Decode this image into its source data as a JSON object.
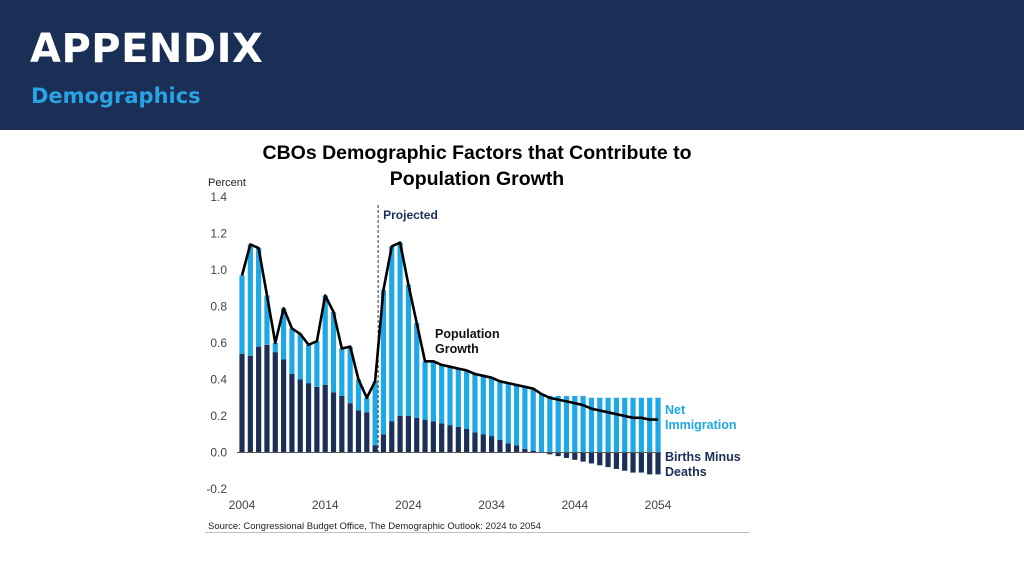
{
  "header": {
    "title": "APPENDIX",
    "subtitle": "Demographics"
  },
  "colors": {
    "header_bg": "#1a2f55",
    "subtitle": "#2aa3e6",
    "net_immigration": "#1fa8e6",
    "births_minus_deaths": "#1b2f57",
    "population_growth": "#000000",
    "projected_label": "#1b2f57"
  },
  "chart_data": {
    "type": "bar",
    "title": "CBOs Demographic Factors that Contribute to Population Growth",
    "title_lines": [
      "CBOs Demographic Factors that Contribute to",
      "Population Growth"
    ],
    "ylabel": "Percent",
    "xlabel": "",
    "ylim": [
      -0.2,
      1.4
    ],
    "yticks": [
      "1.4",
      "1.2",
      "1.0",
      "0.8",
      "0.6",
      "0.4",
      "0.2",
      "0.0",
      "-0.2"
    ],
    "ytick_values": [
      1.4,
      1.2,
      1.0,
      0.8,
      0.6,
      0.4,
      0.2,
      0.0,
      -0.2
    ],
    "xticks": [
      "2004",
      "2014",
      "2024",
      "2034",
      "2044",
      "2054"
    ],
    "xtick_values": [
      2004,
      2014,
      2024,
      2034,
      2044,
      2054
    ],
    "projected_line_x": 2020,
    "annotations": {
      "projected": "Projected",
      "population_growth": [
        "Population",
        "Growth"
      ],
      "net_immigration": [
        "Net",
        "Immigration"
      ],
      "births_minus_deaths": [
        "Births Minus",
        "Deaths"
      ]
    },
    "source": "Source: Congressional Budget Office, The Demographic Outlook: 2024 to 2054",
    "years": [
      2004,
      2005,
      2006,
      2007,
      2008,
      2009,
      2010,
      2011,
      2012,
      2013,
      2014,
      2015,
      2016,
      2017,
      2018,
      2019,
      2020,
      2021,
      2022,
      2023,
      2024,
      2025,
      2026,
      2027,
      2028,
      2029,
      2030,
      2031,
      2032,
      2033,
      2034,
      2035,
      2036,
      2037,
      2038,
      2039,
      2040,
      2041,
      2042,
      2043,
      2044,
      2045,
      2046,
      2047,
      2048,
      2049,
      2050,
      2051,
      2052,
      2053,
      2054
    ],
    "series": [
      {
        "name": "Births Minus Deaths",
        "values": [
          0.54,
          0.53,
          0.58,
          0.59,
          0.55,
          0.51,
          0.43,
          0.4,
          0.38,
          0.36,
          0.37,
          0.33,
          0.31,
          0.27,
          0.23,
          0.22,
          0.04,
          0.1,
          0.17,
          0.2,
          0.2,
          0.19,
          0.18,
          0.17,
          0.16,
          0.15,
          0.14,
          0.13,
          0.11,
          0.1,
          0.09,
          0.07,
          0.05,
          0.04,
          0.02,
          0.01,
          0.0,
          -0.01,
          -0.02,
          -0.03,
          -0.04,
          -0.05,
          -0.06,
          -0.07,
          -0.08,
          -0.09,
          -0.1,
          -0.11,
          -0.11,
          -0.12,
          -0.12
        ]
      },
      {
        "name": "Net Immigration",
        "values": [
          0.43,
          0.61,
          0.54,
          0.27,
          0.05,
          0.28,
          0.25,
          0.25,
          0.21,
          0.25,
          0.49,
          0.44,
          0.26,
          0.31,
          0.17,
          0.08,
          0.35,
          0.79,
          0.96,
          0.95,
          0.72,
          0.52,
          0.32,
          0.33,
          0.32,
          0.32,
          0.32,
          0.32,
          0.32,
          0.32,
          0.32,
          0.32,
          0.33,
          0.33,
          0.34,
          0.34,
          0.32,
          0.31,
          0.31,
          0.31,
          0.31,
          0.31,
          0.3,
          0.3,
          0.3,
          0.3,
          0.3,
          0.3,
          0.3,
          0.3,
          0.3
        ]
      },
      {
        "name": "Population Growth",
        "values": [
          0.97,
          1.14,
          1.12,
          0.86,
          0.6,
          0.79,
          0.68,
          0.65,
          0.59,
          0.61,
          0.86,
          0.77,
          0.57,
          0.58,
          0.4,
          0.3,
          0.39,
          0.89,
          1.13,
          1.15,
          0.92,
          0.71,
          0.5,
          0.5,
          0.48,
          0.47,
          0.46,
          0.45,
          0.43,
          0.42,
          0.41,
          0.39,
          0.38,
          0.37,
          0.36,
          0.35,
          0.32,
          0.3,
          0.29,
          0.28,
          0.27,
          0.26,
          0.24,
          0.23,
          0.22,
          0.21,
          0.2,
          0.19,
          0.19,
          0.18,
          0.18
        ]
      }
    ]
  }
}
